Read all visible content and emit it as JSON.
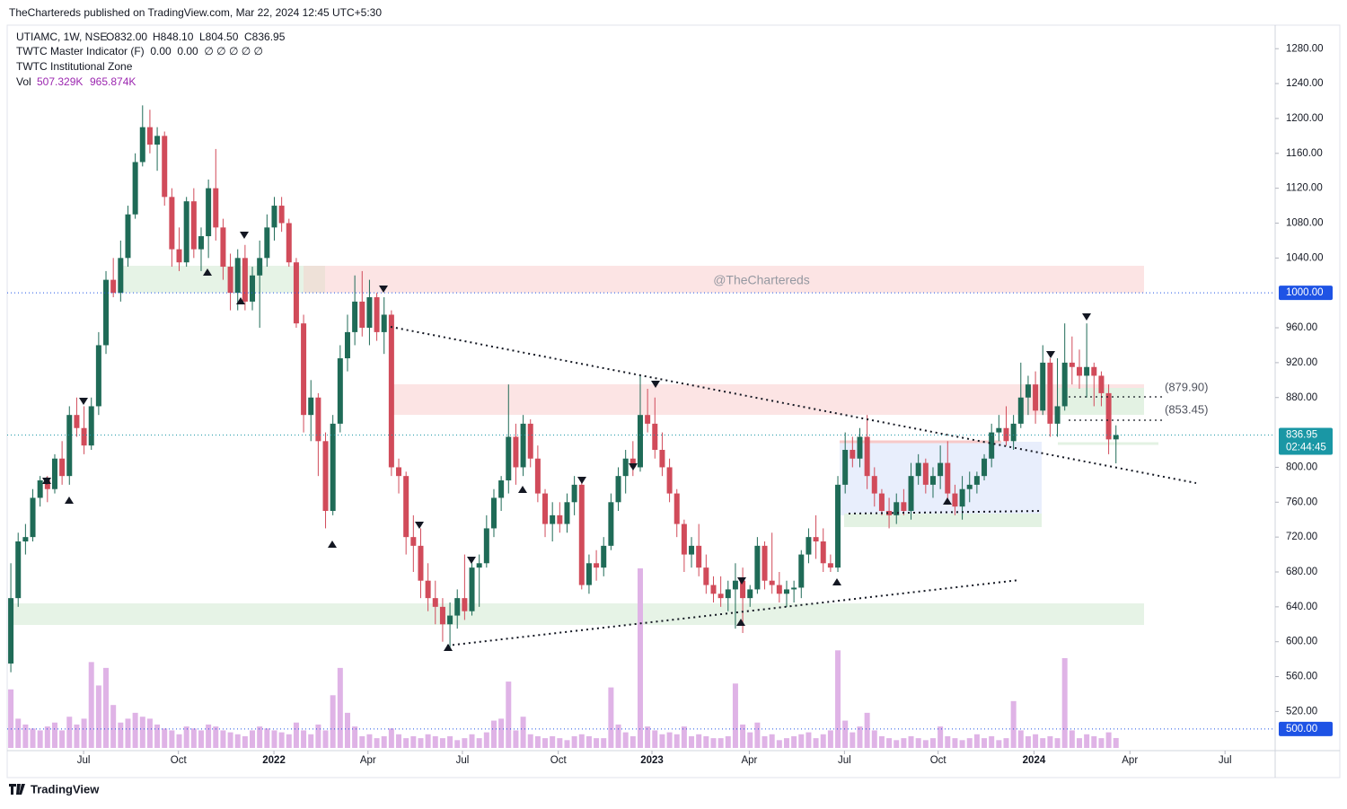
{
  "header": {
    "publisher": "TheChartereds published on TradingView.com, Mar 22, 2024 12:45 UTC+5:30"
  },
  "legend": {
    "symbol": "UTIAMC, 1W, NSE",
    "ohlc": [
      "O832.00",
      "H848.10",
      "L804.50",
      "C836.95"
    ],
    "indicator_1": "TWTC Master Indicator (F)  0.00  0.00  ∅ ∅ ∅ ∅ ∅",
    "indicator_2": "TWTC Institutional Zone",
    "vol": "Vol",
    "vol_values": [
      "507.329K",
      "965.874K"
    ]
  },
  "watermark": "@TheChartereds",
  "annotations": [
    "(879.90)",
    "(853.45)"
  ],
  "footer": "TradingView",
  "chart_data": {
    "type": "candlestick",
    "up_color": "#1f6b57",
    "down_color": "#d14b5a",
    "volume_color": "#dfb3e6",
    "open": [
      575,
      650,
      715,
      720,
      765,
      785,
      775,
      810,
      790,
      860,
      845,
      825,
      870,
      940,
      1015,
      1000,
      1040,
      1090,
      1150,
      1190,
      1170,
      1180,
      1110,
      1050,
      1035,
      1105,
      1050,
      1065,
      1120,
      1075,
      1030,
      1000,
      1040,
      990,
      1020,
      1040,
      1075,
      1100,
      1080,
      1035,
      965,
      860,
      880,
      830,
      750,
      850,
      925,
      955,
      990,
      960,
      995,
      955,
      975,
      800,
      790,
      720,
      710,
      670,
      650,
      640,
      620,
      630,
      650,
      635,
      685,
      690,
      730,
      765,
      785,
      835,
      800,
      850,
      810,
      770,
      735,
      745,
      735,
      760,
      780,
      665,
      690,
      685,
      710,
      760,
      790,
      810,
      800,
      860,
      850,
      820,
      800,
      770,
      735,
      700,
      710,
      685,
      665,
      655,
      650,
      660,
      670,
      650,
      660,
      710,
      670,
      665,
      655,
      660,
      662,
      700,
      720,
      715,
      690,
      685,
      780,
      820,
      810,
      835,
      790,
      770,
      750,
      745,
      760,
      750,
      790,
      805,
      780,
      790,
      805,
      770,
      755,
      775,
      780,
      790,
      810,
      840,
      845,
      830,
      850,
      880,
      895,
      865,
      920,
      850,
      870,
      920,
      915,
      905,
      915,
      905,
      885,
      832
    ],
    "high": [
      690,
      725,
      735,
      775,
      790,
      790,
      815,
      830,
      870,
      880,
      870,
      880,
      955,
      1025,
      1040,
      1060,
      1100,
      1160,
      1215,
      1210,
      1190,
      1185,
      1120,
      1075,
      1110,
      1120,
      1075,
      1130,
      1165,
      1085,
      1045,
      1050,
      1055,
      1030,
      1060,
      1090,
      1110,
      1110,
      1085,
      1040,
      975,
      900,
      885,
      840,
      860,
      940,
      975,
      1020,
      1025,
      1015,
      1000,
      995,
      980,
      810,
      795,
      745,
      730,
      690,
      670,
      650,
      645,
      660,
      700,
      690,
      700,
      745,
      775,
      790,
      895,
      850,
      860,
      855,
      825,
      775,
      760,
      760,
      770,
      790,
      785,
      700,
      705,
      720,
      770,
      800,
      820,
      830,
      905,
      890,
      880,
      840,
      810,
      775,
      740,
      720,
      735,
      700,
      675,
      675,
      670,
      690,
      685,
      665,
      720,
      715,
      725,
      680,
      670,
      670,
      705,
      730,
      745,
      730,
      700,
      790,
      840,
      835,
      845,
      860,
      800,
      775,
      765,
      770,
      775,
      805,
      815,
      810,
      800,
      825,
      830,
      780,
      790,
      795,
      795,
      815,
      850,
      860,
      870,
      860,
      920,
      905,
      910,
      940,
      925,
      925,
      965,
      950,
      935,
      965,
      920,
      910,
      895,
      848.1
    ],
    "low": [
      565,
      640,
      700,
      715,
      755,
      760,
      770,
      780,
      780,
      835,
      815,
      820,
      860,
      930,
      995,
      990,
      1030,
      1085,
      1145,
      1160,
      1140,
      1100,
      1030,
      1025,
      1030,
      1040,
      1025,
      1040,
      1060,
      1015,
      980,
      980,
      980,
      980,
      960,
      1030,
      1060,
      1070,
      1030,
      960,
      840,
      830,
      790,
      730,
      745,
      840,
      910,
      940,
      950,
      940,
      945,
      930,
      790,
      770,
      700,
      680,
      650,
      635,
      620,
      600,
      590,
      615,
      625,
      630,
      640,
      685,
      720,
      750,
      770,
      780,
      790,
      800,
      760,
      720,
      715,
      725,
      725,
      745,
      660,
      655,
      670,
      675,
      705,
      750,
      770,
      790,
      795,
      840,
      810,
      790,
      760,
      720,
      680,
      685,
      675,
      655,
      645,
      640,
      635,
      615,
      610,
      640,
      655,
      660,
      655,
      645,
      640,
      645,
      650,
      690,
      695,
      680,
      680,
      680,
      770,
      800,
      800,
      775,
      755,
      745,
      730,
      735,
      745,
      740,
      780,
      770,
      765,
      775,
      760,
      745,
      740,
      760,
      770,
      785,
      800,
      830,
      825,
      820,
      845,
      860,
      850,
      860,
      835,
      835,
      865,
      895,
      890,
      880,
      870,
      870,
      815,
      804.5
    ],
    "close": [
      650,
      715,
      720,
      765,
      785,
      775,
      810,
      790,
      860,
      845,
      825,
      870,
      940,
      1015,
      1000,
      1040,
      1090,
      1150,
      1190,
      1170,
      1180,
      1110,
      1050,
      1035,
      1105,
      1050,
      1065,
      1120,
      1075,
      1030,
      1000,
      1040,
      990,
      1020,
      1040,
      1075,
      1100,
      1080,
      1035,
      965,
      860,
      880,
      830,
      750,
      850,
      925,
      955,
      990,
      960,
      995,
      955,
      975,
      800,
      790,
      720,
      710,
      670,
      650,
      640,
      620,
      630,
      650,
      635,
      685,
      690,
      730,
      765,
      785,
      835,
      800,
      850,
      810,
      770,
      735,
      745,
      735,
      760,
      780,
      665,
      690,
      685,
      710,
      760,
      790,
      810,
      800,
      860,
      850,
      820,
      800,
      770,
      735,
      700,
      710,
      685,
      665,
      655,
      650,
      660,
      670,
      650,
      660,
      710,
      670,
      665,
      655,
      660,
      662,
      700,
      720,
      715,
      690,
      685,
      780,
      820,
      810,
      835,
      790,
      770,
      750,
      745,
      760,
      750,
      790,
      805,
      780,
      790,
      805,
      770,
      755,
      775,
      780,
      790,
      810,
      840,
      845,
      830,
      850,
      880,
      895,
      865,
      920,
      850,
      870,
      920,
      915,
      905,
      915,
      905,
      885,
      832,
      836.95
    ],
    "volume": [
      3000,
      1500,
      1200,
      1000,
      900,
      1100,
      1300,
      900,
      1600,
      1200,
      1500,
      4400,
      3200,
      4100,
      2200,
      1300,
      1500,
      1800,
      1600,
      1500,
      1200,
      1000,
      900,
      700,
      1100,
      1000,
      900,
      1200,
      1100,
      900,
      800,
      700,
      600,
      900,
      1100,
      1000,
      900,
      800,
      700,
      1300,
      900,
      700,
      1200,
      900,
      2700,
      4100,
      1800,
      1100,
      600,
      700,
      500,
      600,
      1000,
      700,
      500,
      600,
      500,
      700,
      600,
      500,
      600,
      400,
      500,
      700,
      500,
      800,
      1400,
      1500,
      3400,
      900,
      1600,
      700,
      600,
      500,
      600,
      500,
      400,
      600,
      700,
      600,
      500,
      500,
      3100,
      1200,
      800,
      600,
      9200,
      1100,
      900,
      700,
      800,
      700,
      1100,
      600,
      700,
      600,
      500,
      500,
      600,
      3300,
      1200,
      800,
      1300,
      600,
      700,
      400,
      500,
      600,
      700,
      800,
      500,
      700,
      900,
      5000,
      1400,
      800,
      1100,
      1800,
      900,
      600,
      500,
      400,
      500,
      600,
      500,
      400,
      500,
      1100,
      600,
      500,
      400,
      500,
      700,
      500,
      600,
      400,
      500,
      2400,
      900,
      600,
      700,
      500,
      600,
      500,
      4600,
      900,
      500,
      700,
      600,
      500,
      800,
      507.329
    ],
    "xlim": [
      -0.5,
      172.75
    ],
    "xticks": [
      {
        "value": 9.94,
        "label": "Jul"
      },
      {
        "value": 22.9,
        "label": "Oct"
      },
      {
        "value": 35.95,
        "label": "2022"
      },
      {
        "value": 48.8,
        "label": "Apr"
      },
      {
        "value": 61.7,
        "label": "Jul"
      },
      {
        "value": 74.8,
        "label": "Oct"
      },
      {
        "value": 87.6,
        "label": "2023"
      },
      {
        "value": 100.9,
        "label": "Apr"
      },
      {
        "value": 113.9,
        "label": "Jul"
      },
      {
        "value": 126.7,
        "label": "Oct"
      },
      {
        "value": 139.8,
        "label": "2024"
      },
      {
        "value": 152.9,
        "label": "Apr"
      },
      {
        "value": 165.9,
        "label": "Jul"
      }
    ],
    "ylim": [
      471,
      1307
    ],
    "yticks": [
      {
        "value": 1280,
        "label": "1280.00"
      },
      {
        "value": 1240,
        "label": "1240.00"
      },
      {
        "value": 1200,
        "label": "1200.00"
      },
      {
        "value": 1160,
        "label": "1160.00"
      },
      {
        "value": 1120,
        "label": "1120.00"
      },
      {
        "value": 1080,
        "label": "1080.00"
      },
      {
        "value": 1040,
        "label": "1040.00"
      },
      {
        "value": 960,
        "label": "960.00"
      },
      {
        "value": 920,
        "label": "920.00"
      },
      {
        "value": 880,
        "label": "880.00"
      },
      {
        "value": 800,
        "label": "800.00"
      },
      {
        "value": 760,
        "label": "760.00"
      },
      {
        "value": 720,
        "label": "720.00"
      },
      {
        "value": 680,
        "label": "680.00"
      },
      {
        "value": 640,
        "label": "640.00"
      },
      {
        "value": 600,
        "label": "600.00"
      },
      {
        "value": 560,
        "label": "560.00"
      },
      {
        "value": 520,
        "label": "520.00"
      }
    ],
    "price_lines": [
      {
        "value": 1000,
        "label": "1000.00",
        "color": "#1e53e5"
      },
      {
        "value": 500,
        "label": "500.00",
        "color": "#1e53e5"
      }
    ],
    "current_price": {
      "value": 836.95,
      "label": "836.95",
      "countdown": "02:44:45",
      "color": "#1a97a5"
    }
  }
}
